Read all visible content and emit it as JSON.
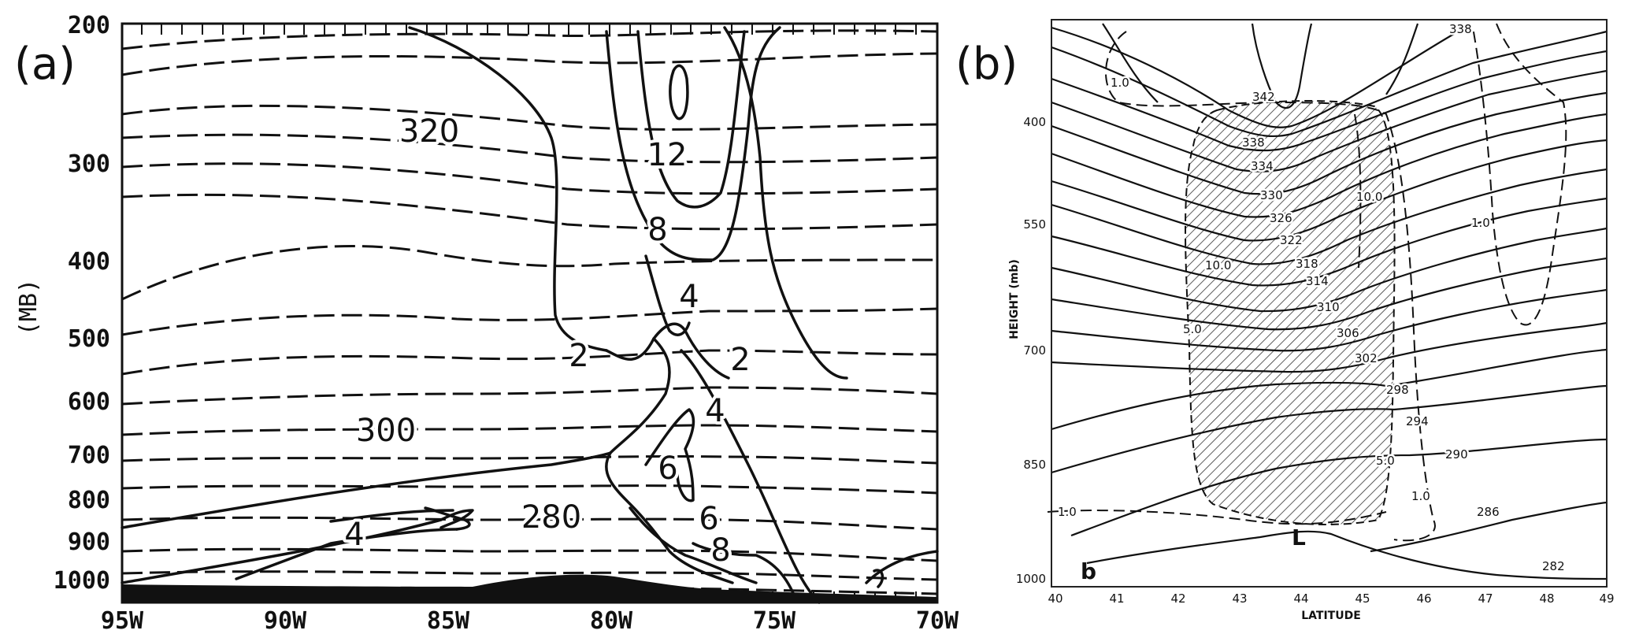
{
  "panel_a": {
    "label": "(a)",
    "ylabel": "(MB)",
    "y_ticks": [
      "200",
      "300",
      "400",
      "500",
      "600",
      "700",
      "800",
      "900",
      "1000"
    ],
    "x_ticks": [
      "95W",
      "90W",
      "85W",
      "80W",
      "75W",
      "70W"
    ],
    "contour_labels": [
      "320",
      "300",
      "280",
      "12",
      "8",
      "4",
      "2",
      "2",
      "4",
      "6",
      "6",
      "4",
      "8"
    ]
  },
  "panel_b": {
    "label": "(b)",
    "ylabel": "HEIGHT (mb)",
    "xlabel": "LATITUDE",
    "sub_label": "b",
    "low_label": "L",
    "y_ticks": [
      "400",
      "550",
      "700",
      "850",
      "1000"
    ],
    "x_ticks": [
      "40",
      "41",
      "42",
      "43",
      "44",
      "45",
      "46",
      "47",
      "48",
      "49"
    ],
    "contour_labels": [
      "342",
      "338",
      "338",
      "334",
      "330",
      "326",
      "322",
      "318",
      "314",
      "310",
      "306",
      "302",
      "298",
      "294",
      "290",
      "286",
      "282"
    ],
    "dashed_labels": [
      "1.0",
      "10.0",
      "10.0",
      "5.0",
      "5.0",
      "1.0",
      "1.0",
      "1.0"
    ]
  }
}
